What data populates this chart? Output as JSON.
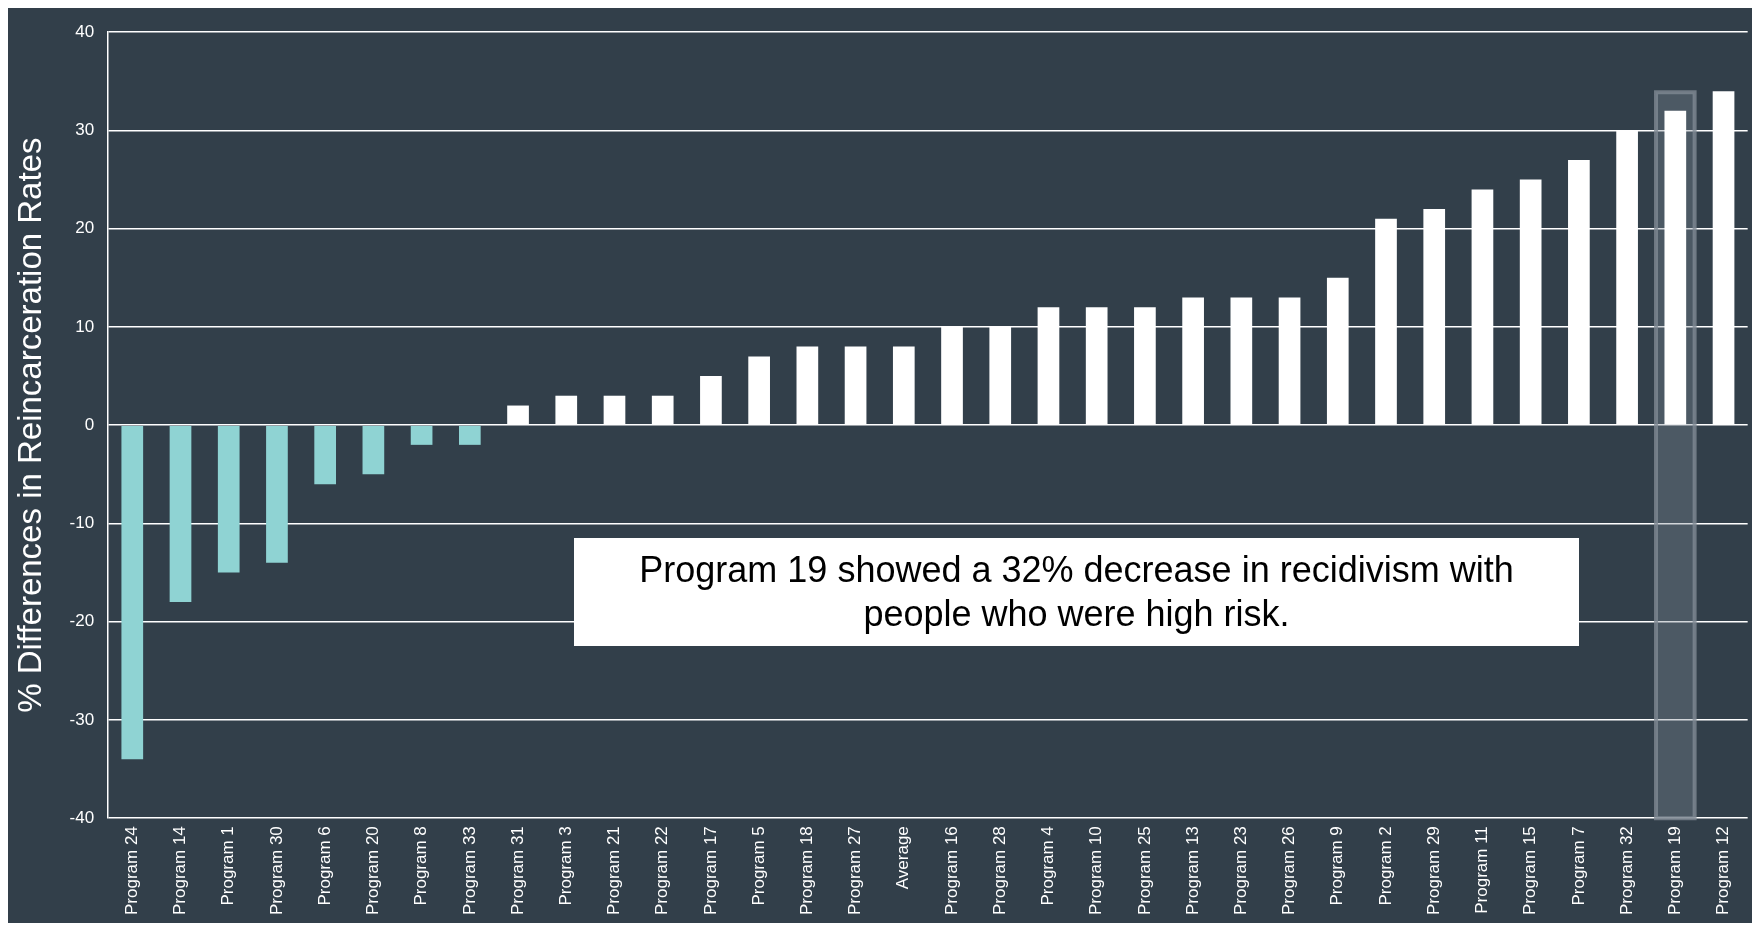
{
  "chart_data": {
    "type": "bar",
    "ylabel": "% Differences in Reincarceration Rates",
    "categories": [
      "Program 24",
      "Program 14",
      "Program 1",
      "Program 30",
      "Program 6",
      "Program 20",
      "Program 8",
      "Program 33",
      "Program 31",
      "Program 3",
      "Program 21",
      "Program 22",
      "Program 17",
      "Program 5",
      "Program 18",
      "Program 27",
      "Average",
      "Program 16",
      "Program 28",
      "Program 4",
      "Program 10",
      "Program 25",
      "Program 13",
      "Program 23",
      "Program 26",
      "Program 9",
      "Program 2",
      "Program 29",
      "Program 11",
      "Program 15",
      "Program 7",
      "Program 32",
      "Program 19",
      "Program 12"
    ],
    "values": [
      -34,
      -18,
      -15,
      -14,
      -6,
      -5,
      -2,
      -2,
      2,
      3,
      3,
      3,
      5,
      7,
      8,
      8,
      8,
      10,
      10,
      12,
      12,
      12,
      13,
      13,
      13,
      15,
      21,
      22,
      24,
      25,
      27,
      30,
      32,
      34
    ],
    "colors": [
      "#8fd3d3",
      "#8fd3d3",
      "#8fd3d3",
      "#8fd3d3",
      "#8fd3d3",
      "#8fd3d3",
      "#8fd3d3",
      "#8fd3d3",
      "#ffffff",
      "#ffffff",
      "#ffffff",
      "#ffffff",
      "#ffffff",
      "#ffffff",
      "#ffffff",
      "#ffffff",
      "#ffffff",
      "#ffffff",
      "#ffffff",
      "#ffffff",
      "#ffffff",
      "#ffffff",
      "#ffffff",
      "#ffffff",
      "#ffffff",
      "#ffffff",
      "#ffffff",
      "#ffffff",
      "#ffffff",
      "#ffffff",
      "#ffffff",
      "#ffffff",
      "#ffffff",
      "#ffffff"
    ],
    "ylim": [
      -40,
      40
    ],
    "yticks": [
      -40,
      -30,
      -20,
      -10,
      0,
      10,
      20,
      30,
      40
    ],
    "grid": "y",
    "legend": false,
    "bands": [
      {
        "axis": "x",
        "from": "Program 19",
        "to": "Program 19",
        "color": "#7f8a94"
      }
    ],
    "annotations": [
      "Program 19 showed a 32% decrease in recidivism with people who were high risk."
    ]
  }
}
